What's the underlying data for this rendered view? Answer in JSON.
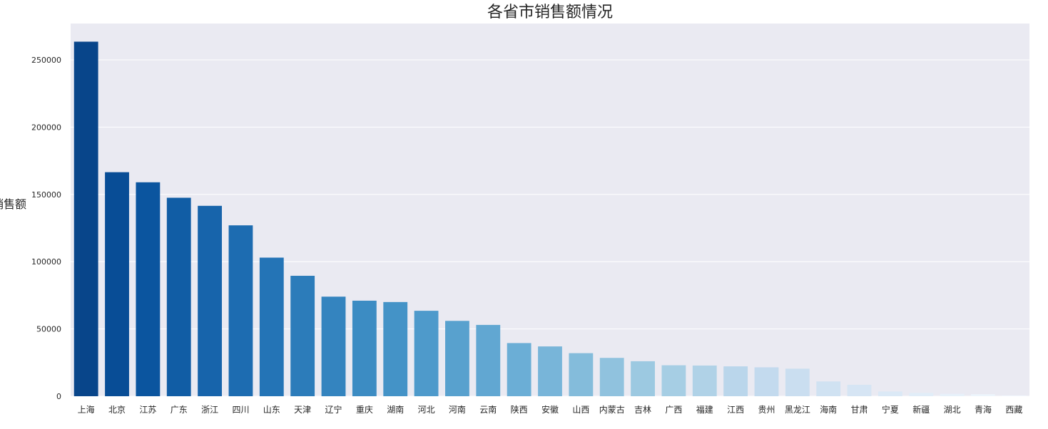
{
  "chart_data": {
    "type": "bar",
    "title": "各省市销售额情况",
    "xlabel": "",
    "ylabel": "销售额",
    "ylim": [
      0,
      277000
    ],
    "yticks": [
      0,
      50000,
      100000,
      150000,
      200000,
      250000
    ],
    "grid": true,
    "palette": "Blues (dark to light)",
    "categories": [
      "上海",
      "北京",
      "江苏",
      "广东",
      "浙江",
      "四川",
      "山东",
      "天津",
      "辽宁",
      "重庆",
      "湖南",
      "河北",
      "河南",
      "云南",
      "陕西",
      "安徽",
      "山西",
      "内蒙古",
      "吉林",
      "广西",
      "福建",
      "江西",
      "贵州",
      "黑龙江",
      "海南",
      "甘肃",
      "宁夏",
      "新疆",
      "湖北",
      "青海",
      "西藏"
    ],
    "values": [
      263500,
      166500,
      159000,
      147500,
      141500,
      127000,
      103000,
      89500,
      74000,
      71000,
      70000,
      63500,
      56000,
      53000,
      39500,
      37000,
      32000,
      28500,
      26000,
      23000,
      22800,
      22200,
      21500,
      20500,
      11000,
      8500,
      3500,
      2500,
      1800,
      1500,
      500
    ]
  }
}
